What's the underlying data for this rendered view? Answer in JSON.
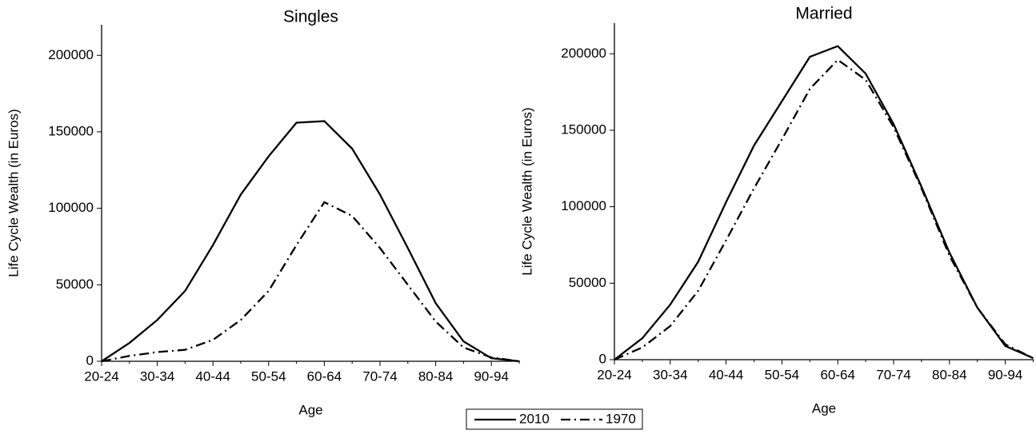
{
  "chart_data": [
    {
      "type": "line",
      "title": "Singles",
      "x_label": "Age",
      "y_label": "Life Cycle Wealth (in Euros)",
      "categories": [
        "20-24",
        null,
        "30-34",
        null,
        "40-44",
        null,
        "50-54",
        null,
        "60-64",
        null,
        "70-74",
        null,
        "80-84",
        null,
        "90-94",
        null
      ],
      "ylim": [
        0,
        220000
      ],
      "yticks": [
        0,
        50000,
        100000,
        150000,
        200000
      ],
      "series": [
        {
          "name": "2010",
          "color": "#000000",
          "style": "solid",
          "values": [
            0,
            12000,
            27000,
            46000,
            76000,
            109000,
            134000,
            156000,
            157000,
            139000,
            109000,
            74000,
            38000,
            13000,
            2000,
            0
          ]
        },
        {
          "name": "1970",
          "color": "#000000",
          "style": "dashdot",
          "values": [
            0,
            3500,
            6000,
            7500,
            14000,
            27000,
            46000,
            76000,
            104000,
            95000,
            74000,
            50000,
            26000,
            9000,
            2500,
            0
          ]
        }
      ]
    },
    {
      "type": "line",
      "title": "Married",
      "x_label": "Age",
      "y_label": "Life Cycle Wealth (in Euros)",
      "categories": [
        "20-24",
        null,
        "30-34",
        null,
        "40-44",
        null,
        "50-54",
        null,
        "60-64",
        null,
        "70-74",
        null,
        "80-84",
        null,
        "90-94",
        null
      ],
      "ylim": [
        0,
        220000
      ],
      "yticks": [
        0,
        50000,
        100000,
        150000,
        200000
      ],
      "series": [
        {
          "name": "2010",
          "color": "#000000",
          "style": "solid",
          "values": [
            0,
            14000,
            36000,
            64000,
            103000,
            140000,
            169000,
            198000,
            205000,
            187000,
            154000,
            113000,
            70000,
            34000,
            9000,
            1000
          ]
        },
        {
          "name": "1970",
          "color": "#000000",
          "style": "dashdot",
          "values": [
            0,
            8000,
            22000,
            45000,
            78000,
            112000,
            144000,
            177000,
            196000,
            183000,
            152000,
            112000,
            68000,
            34000,
            10000,
            1000
          ]
        }
      ]
    }
  ]
}
